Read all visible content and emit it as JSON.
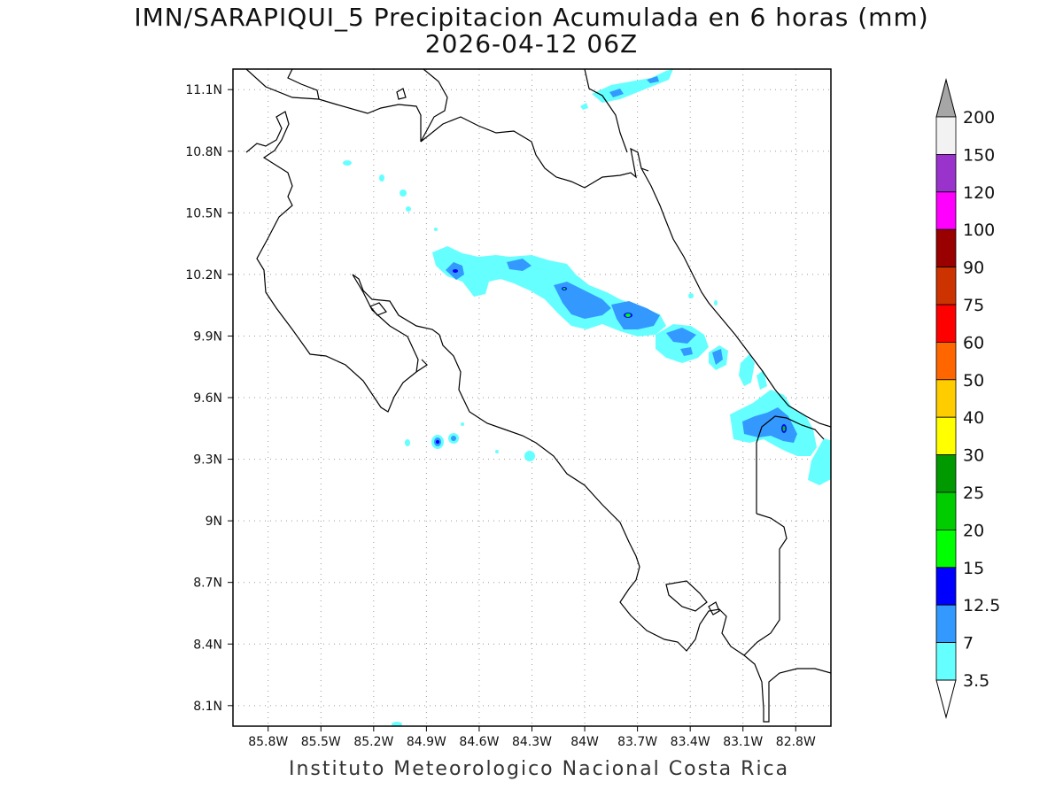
{
  "title": {
    "line1": "IMN/SARAPIQUI_5 Precipitacion Acumulada en 6 horas (mm)",
    "line2": "2026-04-12 06Z"
  },
  "footer": "Instituto Meteorologico Nacional Costa Rica",
  "map": {
    "lon_range": [
      -86.0,
      -82.6
    ],
    "lat_range": [
      8.0,
      11.2
    ],
    "lon_ticks": [
      "85.8W",
      "85.5W",
      "85.2W",
      "84.9W",
      "84.6W",
      "84.3W",
      "84W",
      "83.7W",
      "83.4W",
      "83.1W",
      "82.8W"
    ],
    "lat_ticks": [
      "11.1N",
      "10.8N",
      "10.5N",
      "10.2N",
      "9.9N",
      "9.6N",
      "9.3N",
      "9N",
      "8.7N",
      "8.4N",
      "8.1N"
    ],
    "grid": "dotted"
  },
  "colorbar": {
    "levels": [
      "200",
      "150",
      "120",
      "100",
      "90",
      "75",
      "60",
      "50",
      "40",
      "30",
      "25",
      "20",
      "15",
      "12.5",
      "7",
      "3.5"
    ],
    "colors": [
      "#f2f2f2",
      "#9933cc",
      "#ff00ff",
      "#990000",
      "#cc3300",
      "#ff0000",
      "#ff6600",
      "#ffcc00",
      "#ffff00",
      "#009900",
      "#00cc00",
      "#00ff00",
      "#0000ff",
      "#3399ff",
      "#66ffff"
    ],
    "top_arrow_color": "#a6a6a6",
    "bottom_arrow_color": "#ffffff"
  }
}
